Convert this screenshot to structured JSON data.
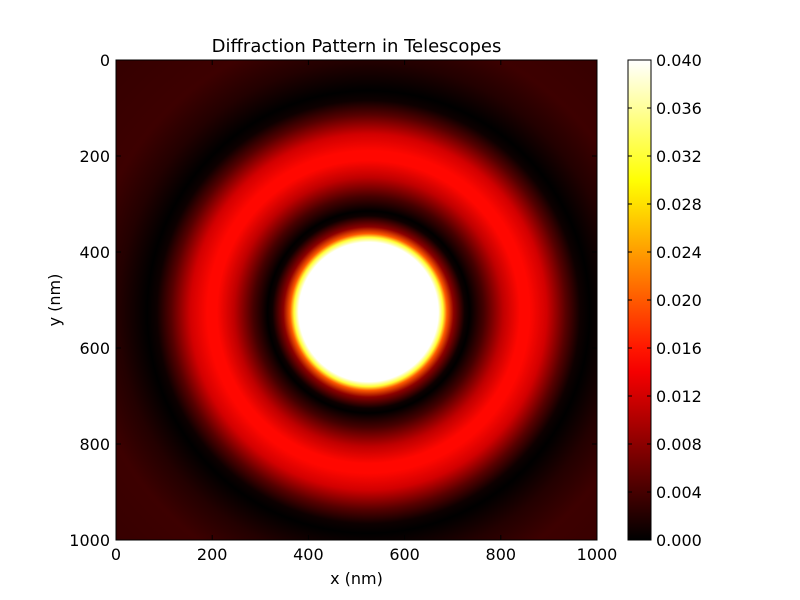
{
  "chart_data": {
    "type": "heatmap",
    "title": "Diffraction Pattern in Telescopes",
    "xlabel": "x (nm)",
    "ylabel": "y (nm)",
    "xlim": [
      0,
      1000
    ],
    "ylim": [
      1000,
      0
    ],
    "xticks": [
      0,
      200,
      400,
      600,
      800,
      1000
    ],
    "yticks": [
      0,
      200,
      400,
      600,
      800,
      1000
    ],
    "xtick_labels": [
      "0",
      "200",
      "400",
      "600",
      "800",
      "1000"
    ],
    "ytick_labels": [
      "0",
      "200",
      "400",
      "600",
      "800",
      "1000"
    ],
    "colormap": "hot",
    "color_range": [
      0.0,
      0.04
    ],
    "colorbar_ticks": [
      0.0,
      0.004,
      0.008,
      0.012,
      0.016,
      0.02,
      0.024,
      0.028,
      0.032,
      0.036,
      0.04
    ],
    "colorbar_labels": [
      "0.000",
      "0.004",
      "0.008",
      "0.012",
      "0.016",
      "0.020",
      "0.024",
      "0.028",
      "0.032",
      "0.036",
      "0.040"
    ],
    "pattern": {
      "kind": "airy-rings",
      "center": [
        525,
        525
      ],
      "central_disk_radius": 155,
      "first_dark_ring_radius": 210,
      "bright_ring_radius": 335,
      "bright_ring_peak_value": 0.015,
      "second_dark_ring_radius": 460
    },
    "grid": false
  }
}
